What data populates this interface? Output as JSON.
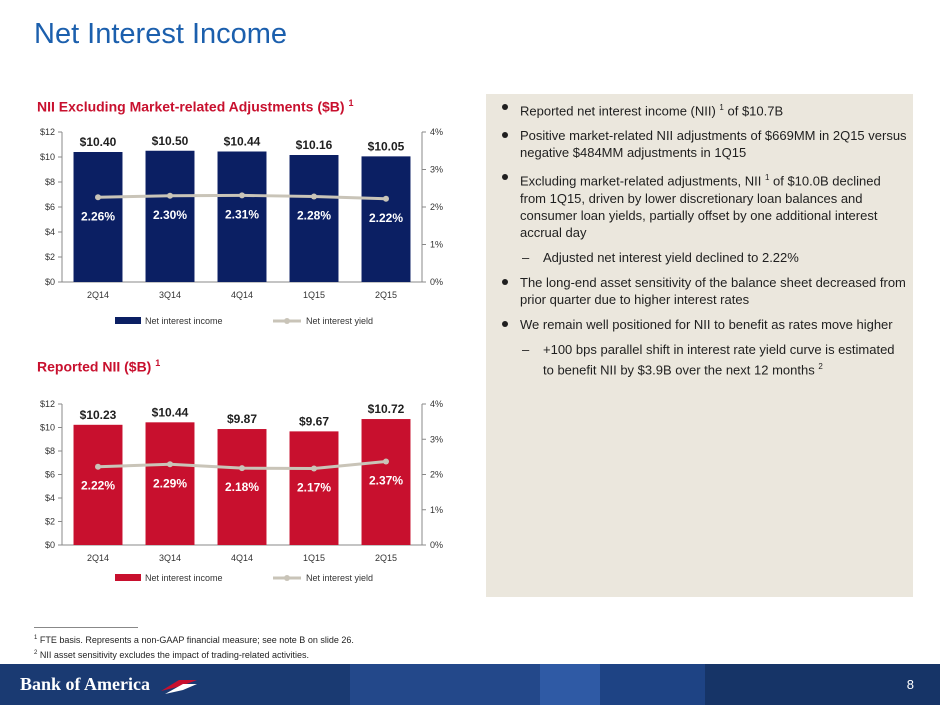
{
  "page": {
    "title": "Net Interest Income",
    "page_number": "8",
    "brand": "Bank of America"
  },
  "colors": {
    "title_blue": "#1b5fad",
    "chart_title_red": "#c8102e",
    "bar_navy": "#0b1f63",
    "bar_red": "#c8102e",
    "yield_line": "#c9c4b8",
    "panel_bg": "#ebe7dd",
    "footer_navy": "#1a3a72"
  },
  "chart_data": [
    {
      "type": "bar",
      "title": "NII Excluding Market-related Adjustments ($B)",
      "title_footnote": "1",
      "categories": [
        "2Q14",
        "3Q14",
        "4Q14",
        "1Q15",
        "2Q15"
      ],
      "series": [
        {
          "name": "Net interest income",
          "values": [
            10.4,
            10.5,
            10.44,
            10.16,
            10.05
          ],
          "labels": [
            "$10.40",
            "$10.50",
            "$10.44",
            "$10.16",
            "$10.05"
          ],
          "axis": "left",
          "type": "bar"
        },
        {
          "name": "Net interest yield",
          "values": [
            2.26,
            2.3,
            2.31,
            2.28,
            2.22
          ],
          "labels": [
            "2.26%",
            "2.30%",
            "2.31%",
            "2.28%",
            "2.22%"
          ],
          "axis": "right",
          "type": "line"
        }
      ],
      "left_ticks": [
        "$0",
        "$2",
        "$4",
        "$6",
        "$8",
        "$10",
        "$12"
      ],
      "right_ticks": [
        "0%",
        "1%",
        "2%",
        "3%",
        "4%"
      ],
      "ylim": [
        0,
        12
      ],
      "y2lim": [
        0,
        4
      ],
      "legend": "bottom"
    },
    {
      "type": "bar",
      "title": "Reported NII ($B)",
      "title_footnote": "1",
      "categories": [
        "2Q14",
        "3Q14",
        "4Q14",
        "1Q15",
        "2Q15"
      ],
      "series": [
        {
          "name": "Net interest income",
          "values": [
            10.23,
            10.44,
            9.87,
            9.67,
            10.72
          ],
          "labels": [
            "$10.23",
            "$10.44",
            "$9.87",
            "$9.67",
            "$10.72"
          ],
          "axis": "left",
          "type": "bar"
        },
        {
          "name": "Net interest yield",
          "values": [
            2.22,
            2.29,
            2.18,
            2.17,
            2.37
          ],
          "labels": [
            "2.22%",
            "2.29%",
            "2.18%",
            "2.17%",
            "2.37%"
          ],
          "axis": "right",
          "type": "line"
        }
      ],
      "left_ticks": [
        "$0",
        "$2",
        "$4",
        "$6",
        "$8",
        "$10",
        "$12"
      ],
      "right_ticks": [
        "0%",
        "1%",
        "2%",
        "3%",
        "4%"
      ],
      "ylim": [
        0,
        12
      ],
      "y2lim": [
        0,
        4
      ],
      "legend": "bottom"
    }
  ],
  "bullets": [
    {
      "level": 1,
      "text": "Reported net interest income (NII) ",
      "sup": "1",
      "after": " of $10.7B"
    },
    {
      "level": 1,
      "text": "Positive market-related NII adjustments of $669MM in 2Q15 versus negative $484MM adjustments in 1Q15",
      "sup": "",
      "after": ""
    },
    {
      "level": 1,
      "text": "Excluding market-related adjustments, NII ",
      "sup": "1",
      "after": " of $10.0B declined from 1Q15, driven by lower discretionary loan balances and consumer loan yields, partially offset by one additional interest accrual day"
    },
    {
      "level": 2,
      "text": "Adjusted net interest yield declined to 2.22%",
      "sup": "",
      "after": ""
    },
    {
      "level": 1,
      "text": "The long-end asset sensitivity of the balance sheet decreased from prior quarter due to higher interest rates",
      "sup": "",
      "after": ""
    },
    {
      "level": 1,
      "text": "We remain well positioned for NII to benefit as rates move higher",
      "sup": "",
      "after": ""
    },
    {
      "level": 2,
      "text": "+100 bps parallel shift in interest rate yield curve is estimated to benefit NII by $3.9B over the next 12 months ",
      "sup": "2",
      "after": ""
    }
  ],
  "footnotes": [
    {
      "num": "1",
      "text": " FTE basis. Represents a non-GAAP financial measure; see note B on slide 26."
    },
    {
      "num": "2",
      "text": " NII asset sensitivity excludes the impact of trading-related activities."
    }
  ]
}
